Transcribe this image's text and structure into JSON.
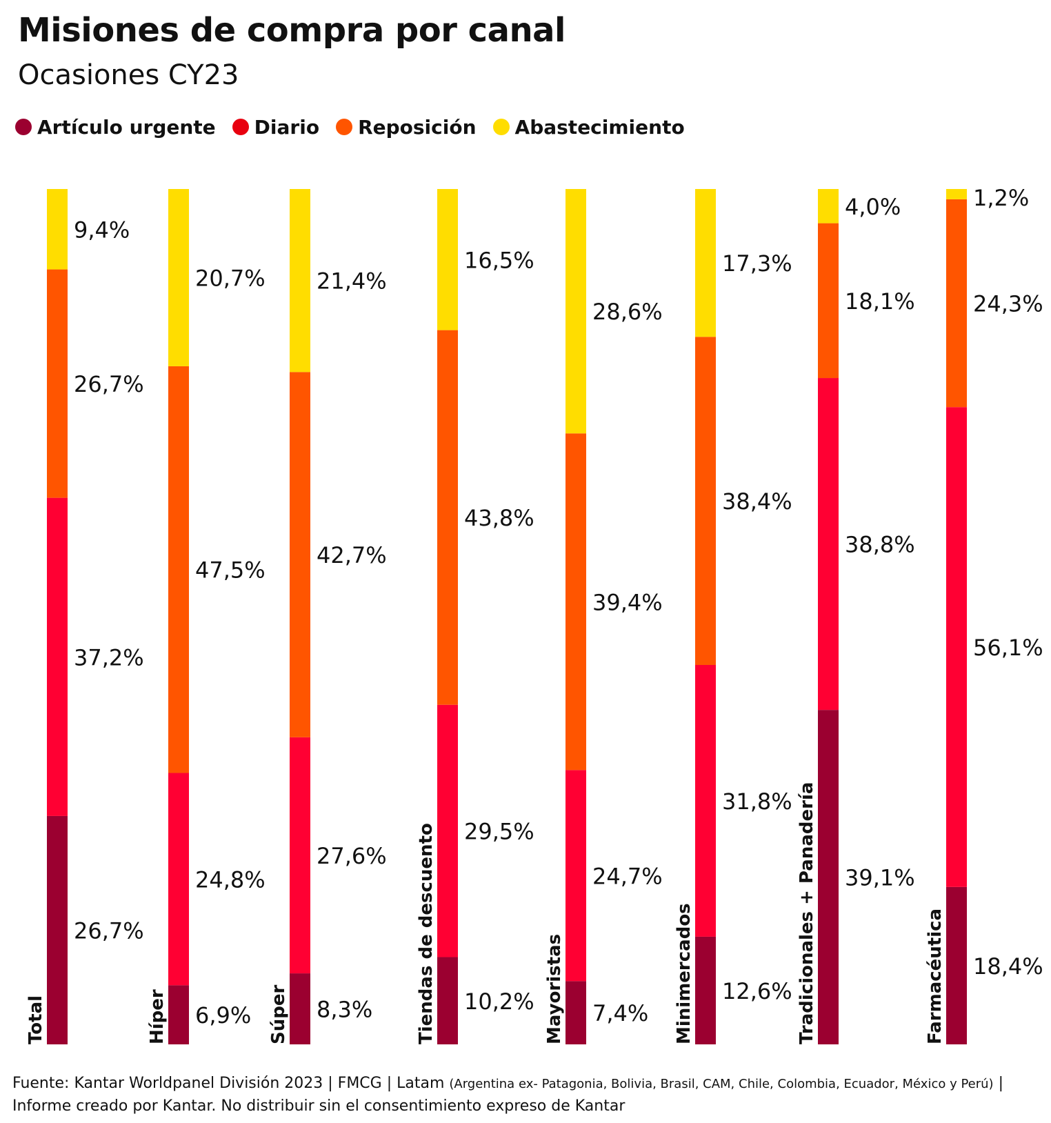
{
  "chart_data": {
    "type": "bar",
    "stacked": true,
    "normalized": true,
    "title": "Misiones de compra por canal",
    "subtitle": "Ocasiones CY23",
    "legend_placement": "top-left",
    "grid": false,
    "categories": [
      "Total",
      "Híper",
      "Súper",
      "Tiendas de descuento",
      "Mayoristas",
      "Minimercados",
      "Tradicionales + Panadería",
      "Farmacéutica"
    ],
    "series": [
      {
        "name": "Artículo urgente",
        "color": "#9B0030",
        "values": [
          26.7,
          6.9,
          8.3,
          10.2,
          7.4,
          12.6,
          39.1,
          18.4
        ],
        "labels": [
          "26,7%",
          "6,9%",
          "8,3%",
          "10,2%",
          "7,4%",
          "12,6%",
          "39,1%",
          "18,4%"
        ]
      },
      {
        "name": "Diario",
        "color": "#FF0033",
        "values": [
          37.2,
          24.8,
          27.6,
          29.5,
          24.7,
          31.8,
          38.8,
          56.1
        ],
        "labels": [
          "37,2%",
          "24,8%",
          "27,6%",
          "29,5%",
          "24,7%",
          "31,8%",
          "38,8%",
          "56,1%"
        ]
      },
      {
        "name": "Reposición",
        "color": "#FF5500",
        "values": [
          26.7,
          47.5,
          42.7,
          43.8,
          39.4,
          38.4,
          18.1,
          24.3
        ],
        "labels": [
          "26,7%",
          "47,5%",
          "42,7%",
          "43,8%",
          "39,4%",
          "38,4%",
          "18,1%",
          "24,3%"
        ]
      },
      {
        "name": "Abastecimiento",
        "color": "#FFDD00",
        "values": [
          9.4,
          20.7,
          21.4,
          16.5,
          28.6,
          17.3,
          4.0,
          1.2
        ],
        "labels": [
          "9,4%",
          "20,7%",
          "21,4%",
          "16,5%",
          "28,6%",
          "17,3%",
          "4,0%",
          "1,2%"
        ]
      }
    ]
  },
  "legend": {
    "items": [
      {
        "label": "Artículo urgente",
        "color": "#9B0030",
        "dot_color": "#9B0030"
      },
      {
        "label": "Diario",
        "color": "#FF0033",
        "dot_color": "#E8000F"
      },
      {
        "label": "Reposición",
        "color": "#FF5500",
        "dot_color": "#FF5500"
      },
      {
        "label": "Abastecimiento",
        "color": "#FFDD00",
        "dot_color": "#FFDD00"
      }
    ]
  },
  "footer": {
    "source_main": "Fuente: Kantar Worldpanel División 2023 | FMCG | Latam",
    "countries": "(Argentina ex- Patagonia, Bolivia, Brasil, CAM, Chile, Colombia, Ecuador, México y Perú)",
    "note": "| Informe creado por Kantar. No distribuir sin el consentimiento expreso de Kantar"
  }
}
